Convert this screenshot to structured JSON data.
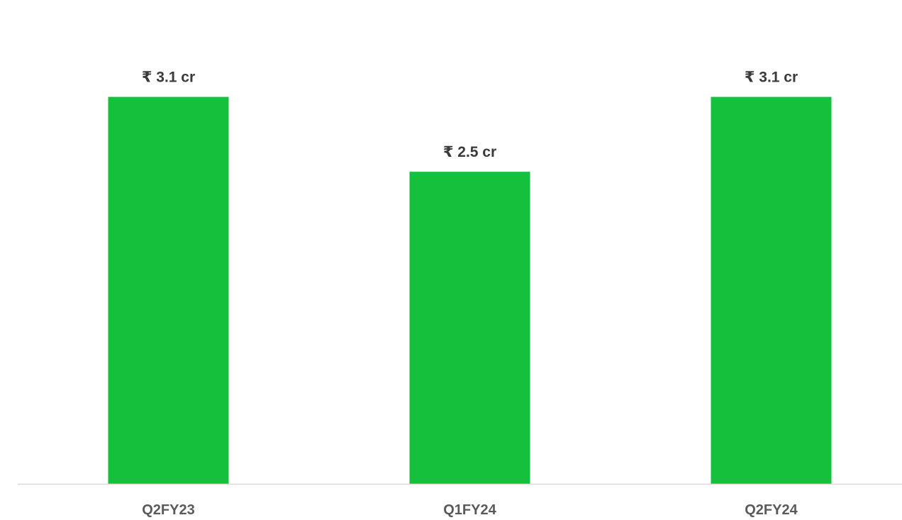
{
  "chart_data": {
    "type": "bar",
    "categories": [
      "Q2FY23",
      "Q1FY24",
      "Q2FY24"
    ],
    "values": [
      3.1,
      2.5,
      3.1
    ],
    "data_labels": [
      "₹ 3.1 cr",
      "₹ 2.5 cr",
      "₹ 3.1 cr"
    ],
    "title": "",
    "xlabel": "",
    "ylabel": "",
    "ylim": [
      0,
      3.45
    ],
    "grid": false,
    "legend": "none",
    "colors": {
      "bar": "#14c03c",
      "axis": "#d9d9d9"
    }
  }
}
